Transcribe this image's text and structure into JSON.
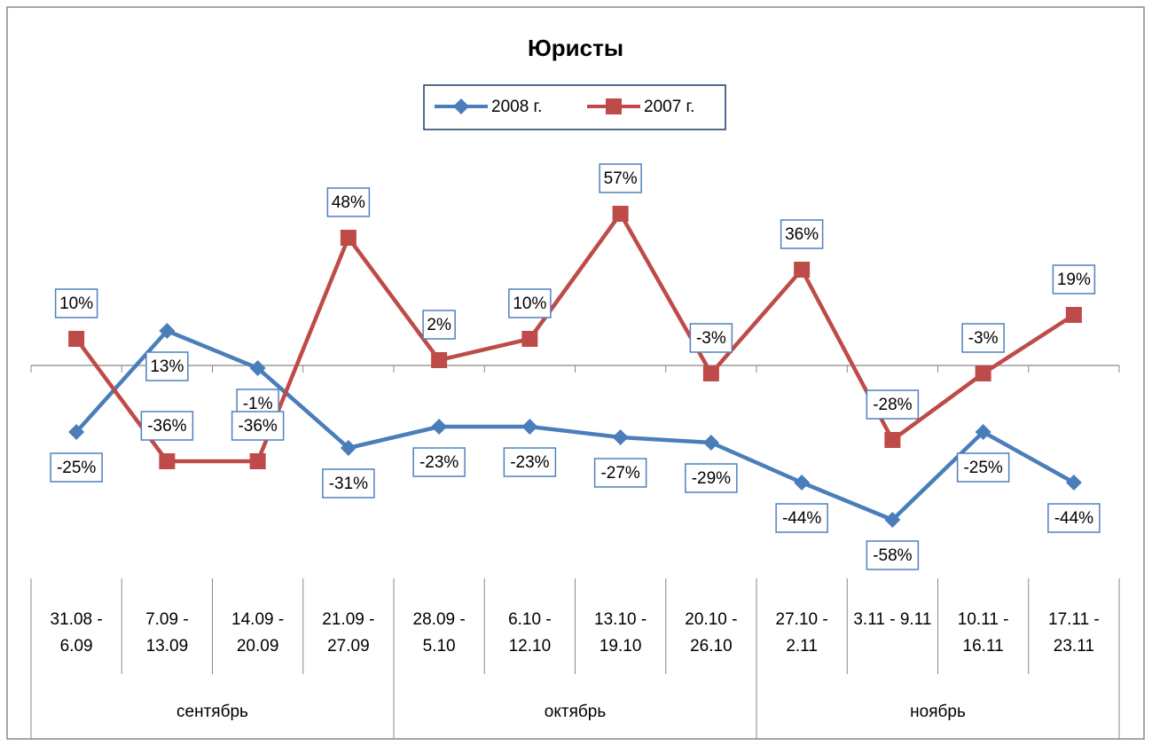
{
  "chart_data": {
    "type": "line",
    "title": "Юристы",
    "groups": [
      {
        "name": "сентябрь",
        "categories": [
          "31.08 - 6.09",
          "7.09 - 13.09",
          "14.09 - 20.09",
          "21.09 - 27.09"
        ]
      },
      {
        "name": "октябрь",
        "categories": [
          "28.09 - 5.10",
          "6.10 - 12.10",
          "13.10 - 19.10",
          "20.10 - 26.10"
        ]
      },
      {
        "name": "ноябрь",
        "categories": [
          "27.10 - 2.11",
          "3.11 - 9.11",
          "10.11 - 16.11",
          "17.11 - 23.11"
        ]
      }
    ],
    "series": [
      {
        "name": "2008 г.",
        "color": "#4a7ebb",
        "marker": "diamond",
        "label_side": "below",
        "values": [
          -25,
          13,
          -1,
          -31,
          -23,
          -23,
          -27,
          -29,
          -44,
          -58,
          -25,
          -44
        ],
        "value_labels": [
          "-25%",
          "13%",
          "-1%",
          "-31%",
          "-23%",
          "-23%",
          "-27%",
          "-29%",
          "-44%",
          "-58%",
          "-25%",
          "-44%"
        ]
      },
      {
        "name": "2007 г.",
        "color": "#be4b48",
        "marker": "square",
        "label_side": "above",
        "values": [
          10,
          -36,
          -36,
          48,
          2,
          10,
          57,
          -3,
          36,
          -28,
          -3,
          19
        ],
        "value_labels": [
          "10%",
          "-36%",
          "-36%",
          "48%",
          "2%",
          "10%",
          "57%",
          "-3%",
          "36%",
          "-28%",
          "-3%",
          "19%"
        ]
      }
    ],
    "ylim": [
      -80,
      80
    ],
    "legend": "top"
  }
}
